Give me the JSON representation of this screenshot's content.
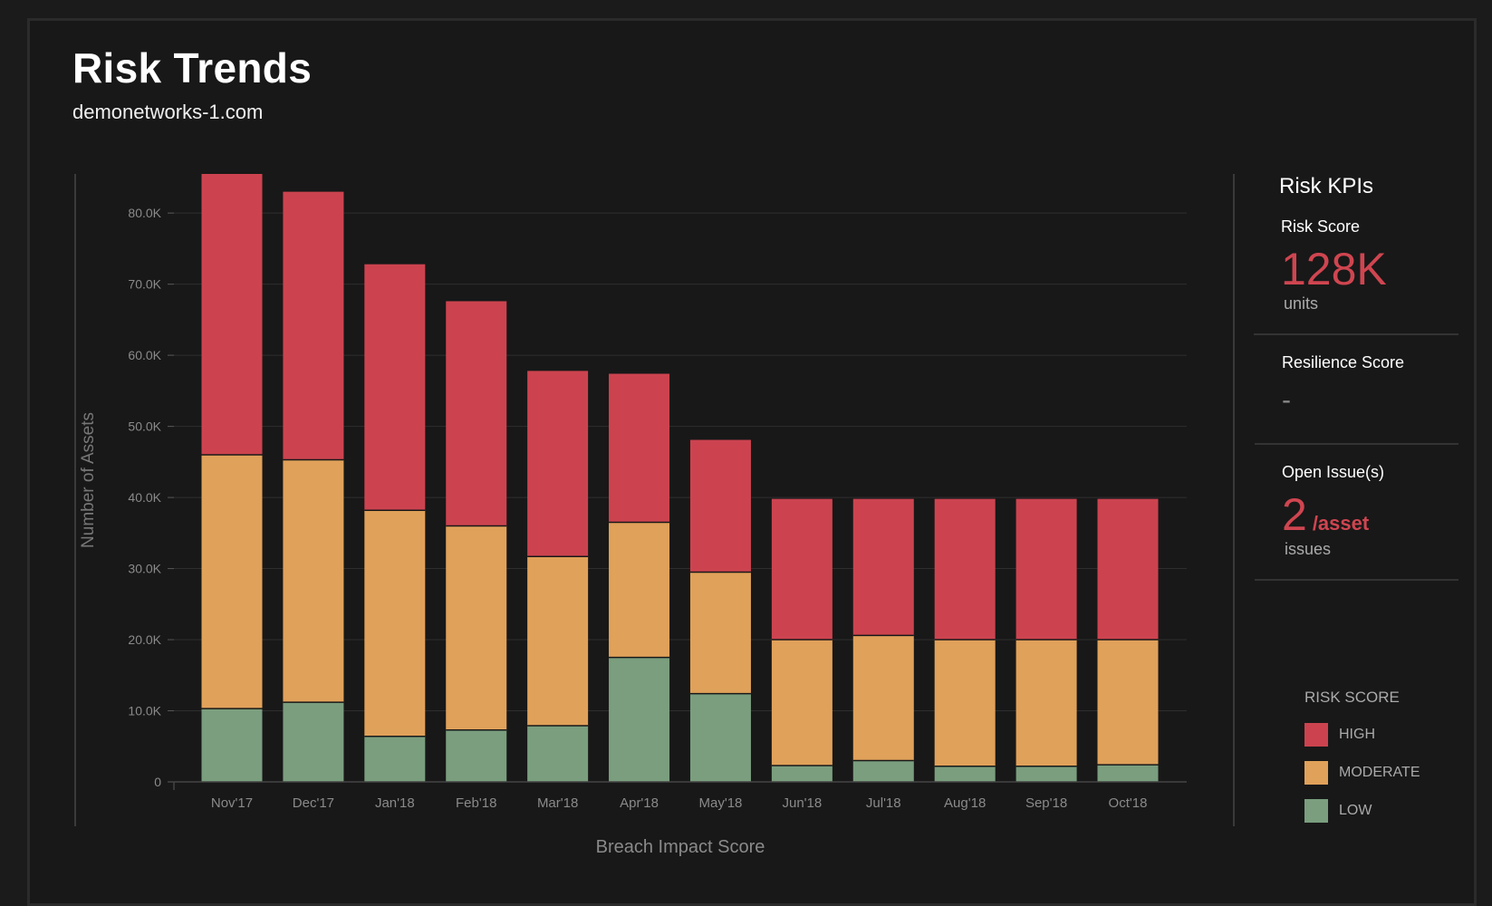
{
  "header": {
    "title": "Risk Trends",
    "subtitle": "demonetworks-1.com"
  },
  "chart_data": {
    "type": "bar",
    "stacked": true,
    "categories": [
      "Nov'17",
      "Dec'17",
      "Jan'18",
      "Feb'18",
      "Mar'18",
      "Apr'18",
      "May'18",
      "Jun'18",
      "Jul'18",
      "Aug'18",
      "Sep'18",
      "Oct'18"
    ],
    "series": [
      {
        "name": "LOW",
        "color": "#7a9e7e",
        "values": [
          10300,
          11200,
          6400,
          7300,
          7900,
          17500,
          12400,
          2300,
          3000,
          2200,
          2200,
          2400
        ]
      },
      {
        "name": "MODERATE",
        "color": "#e0a15a",
        "values": [
          35700,
          34100,
          31800,
          28700,
          23800,
          19000,
          17100,
          17700,
          17600,
          17800,
          17800,
          17600
        ]
      },
      {
        "name": "HIGH",
        "color": "#cc434f",
        "values": [
          39500,
          37700,
          34600,
          31600,
          26100,
          20900,
          18600,
          19800,
          19200,
          19800,
          19800,
          19800
        ]
      }
    ],
    "ylabel": "Number of Assets",
    "xlabel": "Breach Impact Score",
    "ylim": [
      0,
      85500
    ],
    "yticks": [
      0,
      10000,
      20000,
      30000,
      40000,
      50000,
      60000,
      70000,
      80000
    ],
    "ytick_labels": [
      "0",
      "10.0K",
      "20.0K",
      "30.0K",
      "40.0K",
      "50.0K",
      "60.0K",
      "70.0K",
      "80.0K"
    ],
    "grid": true,
    "legend_title": "RISK SCORE",
    "legend_placement": "bottom-right"
  },
  "kpis": {
    "heading": "Risk KPIs",
    "risk_score": {
      "label": "Risk Score",
      "value": "128K",
      "unit": "units"
    },
    "resilience_score": {
      "label": "Resilience Score",
      "value": "-"
    },
    "open_issues": {
      "label": "Open Issue(s)",
      "value": "2",
      "per": "/asset",
      "unit": "issues"
    }
  },
  "legend": {
    "title": "RISK SCORE",
    "items": [
      {
        "label": "HIGH",
        "color": "#cc434f"
      },
      {
        "label": "MODERATE",
        "color": "#e0a15a"
      },
      {
        "label": "LOW",
        "color": "#7a9e7e"
      }
    ]
  }
}
